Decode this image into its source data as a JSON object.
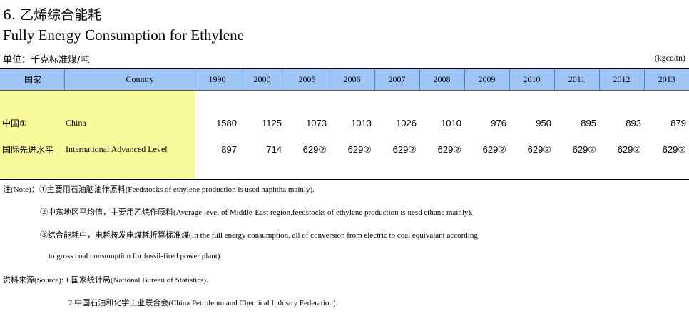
{
  "title_cn": "6.  乙烯综合能耗",
  "title_en": "Fully Energy Consumption for Ethylene",
  "unit_cn": "单位：千克标准煤/吨",
  "unit_en": "(kgce/tn)",
  "table": {
    "header_country_cn": "国家",
    "header_country_en": "Country",
    "years": [
      "1990",
      "2000",
      "2005",
      "2006",
      "2007",
      "2008",
      "2009",
      "2010",
      "2011",
      "2012",
      "2013"
    ],
    "rows": [
      {
        "cn": "中国①",
        "en": "China",
        "values": [
          "1580",
          "1125",
          "1073",
          "1013",
          "1026",
          "1010",
          "976",
          "950",
          "895",
          "893",
          "879"
        ]
      },
      {
        "cn": "国际先进水平",
        "en": "International Advanced Level",
        "values": [
          "897",
          "714",
          "629②",
          "629②",
          "629②",
          "629②",
          "629②",
          "629②",
          "629②",
          "629②",
          "629②"
        ]
      }
    ]
  },
  "notes": {
    "line1": "注(Note)：①主要用石油脑油作原料(Feedstocks of ethylene production is used naphtha mainly).",
    "line2": "②中东地区平均值，主要用乙烷作原料(Average level of Middle-East region,feedstocks of ethylene production is uesd ethane mainly).",
    "line3": "③综合能耗中，电耗按发电煤耗折算标准煤(In the full energy consumption, all of conversion from electric to coal equivalant according",
    "line4": "to gross coal consumption for fossil-fired power plant).",
    "line5": "资料来源(Source): 1.国家统计局(National Bureau of Statistics).",
    "line6": "2.中国石油和化学工业联合会(China Petroleum and Chemical Industry Federation)."
  }
}
